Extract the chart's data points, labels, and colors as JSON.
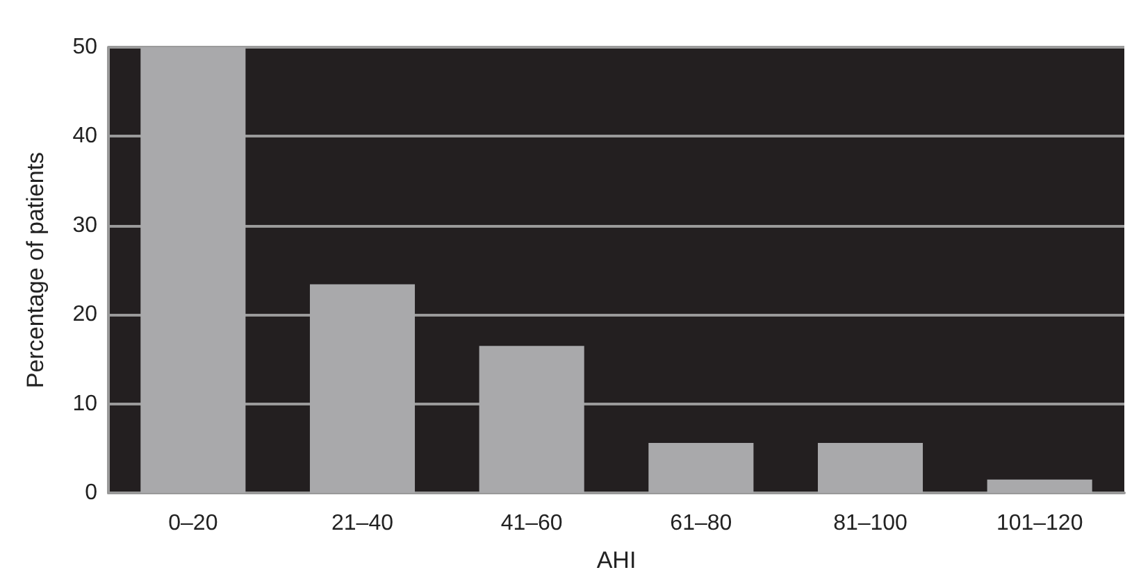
{
  "chart_data": {
    "type": "bar",
    "xlabel": "AHI",
    "ylabel": "Percentage of patients",
    "categories": [
      "0–20",
      "21–40",
      "41–60",
      "61–80",
      "81–100",
      "101–120"
    ],
    "values": [
      50,
      23.4,
      16.5,
      5.6,
      5.6,
      1.5
    ],
    "color": "#a9a9ab",
    "ylim": [
      0,
      50
    ],
    "yticks": [
      0,
      10,
      20,
      30,
      40,
      50
    ],
    "grid": "y"
  }
}
